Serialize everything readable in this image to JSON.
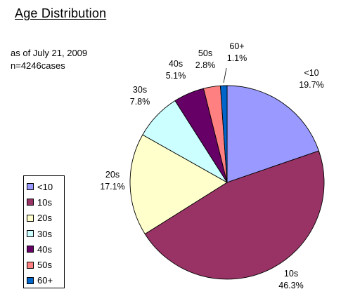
{
  "chart_data": {
    "type": "pie",
    "title": "Age Distribution",
    "subtitle_lines": [
      "as of July 21, 2009",
      "n=4246cases"
    ],
    "categories": [
      "<10",
      "10s",
      "20s",
      "30s",
      "40s",
      "50s",
      "60+"
    ],
    "values": [
      19.7,
      46.3,
      17.1,
      7.8,
      5.1,
      2.8,
      1.1
    ],
    "value_labels": [
      "19.7%",
      "46.3%",
      "17.1%",
      "7.8%",
      "5.1%",
      "2.8%",
      "1.1%"
    ],
    "colors": [
      "#9999ff",
      "#993366",
      "#ffffcc",
      "#ccffff",
      "#660066",
      "#ff8080",
      "#0066cc"
    ],
    "start_angle_deg": 0,
    "direction": "clockwise",
    "legend_position": "left"
  }
}
